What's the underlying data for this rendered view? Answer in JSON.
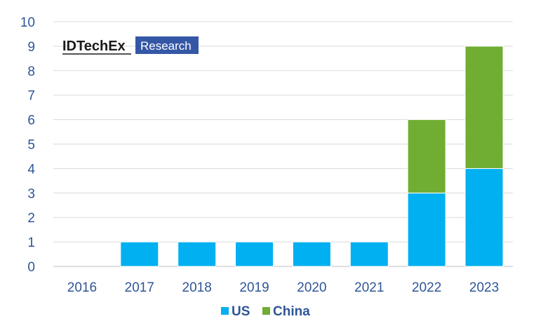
{
  "logo": {
    "brand": "IDTechEx",
    "sub": "Research",
    "sub_bg": "#3558a6"
  },
  "chart_data": {
    "type": "bar",
    "stacked": true,
    "categories": [
      "2016",
      "2017",
      "2018",
      "2019",
      "2020",
      "2021",
      "2022",
      "2023"
    ],
    "series": [
      {
        "name": "US",
        "color": "#00b0f0",
        "values": [
          0,
          1,
          1,
          1,
          1,
          1,
          3,
          4
        ]
      },
      {
        "name": "China",
        "color": "#70ad33",
        "values": [
          0,
          0,
          0,
          0,
          0,
          0,
          3,
          5
        ]
      }
    ],
    "ylim": [
      0,
      10
    ],
    "yticks": [
      "0",
      "1",
      "2",
      "3",
      "4",
      "5",
      "6",
      "7",
      "8",
      "9",
      "10"
    ],
    "grid": true,
    "legend": "bottom",
    "title": "",
    "xlabel": "",
    "ylabel": ""
  }
}
